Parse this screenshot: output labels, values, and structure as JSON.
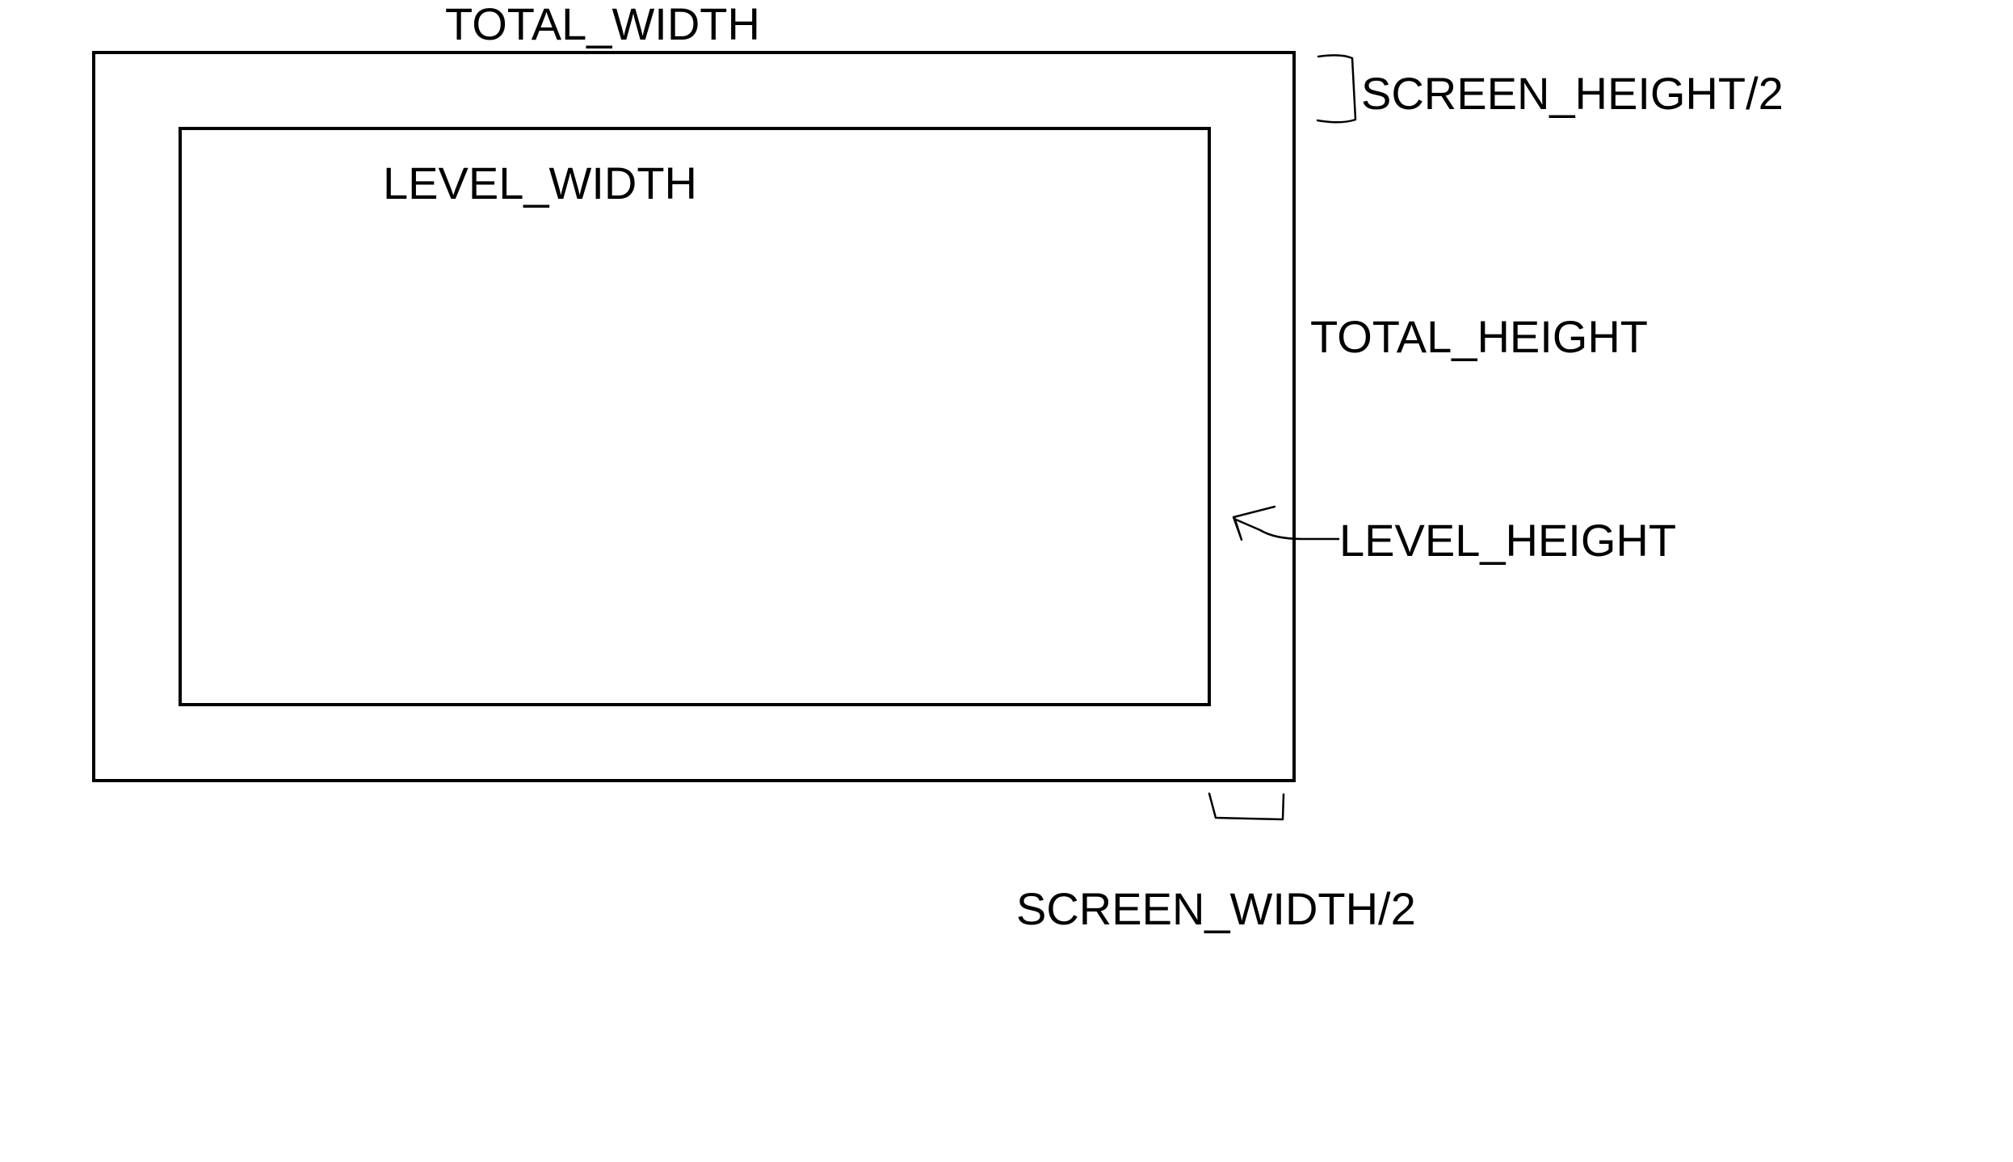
{
  "diagram": {
    "labels": {
      "total_width": "TOTAL_WIDTH",
      "level_width": "LEVEL_WIDTH",
      "screen_height_half": "SCREEN_HEIGHT/2",
      "total_height": "TOTAL_HEIGHT",
      "level_height": "LEVEL_HEIGHT",
      "screen_width_half": "SCREEN_WIDTH/2"
    },
    "colors": {
      "background": "#ffffff",
      "stroke": "#000000",
      "text": "#000000"
    }
  }
}
